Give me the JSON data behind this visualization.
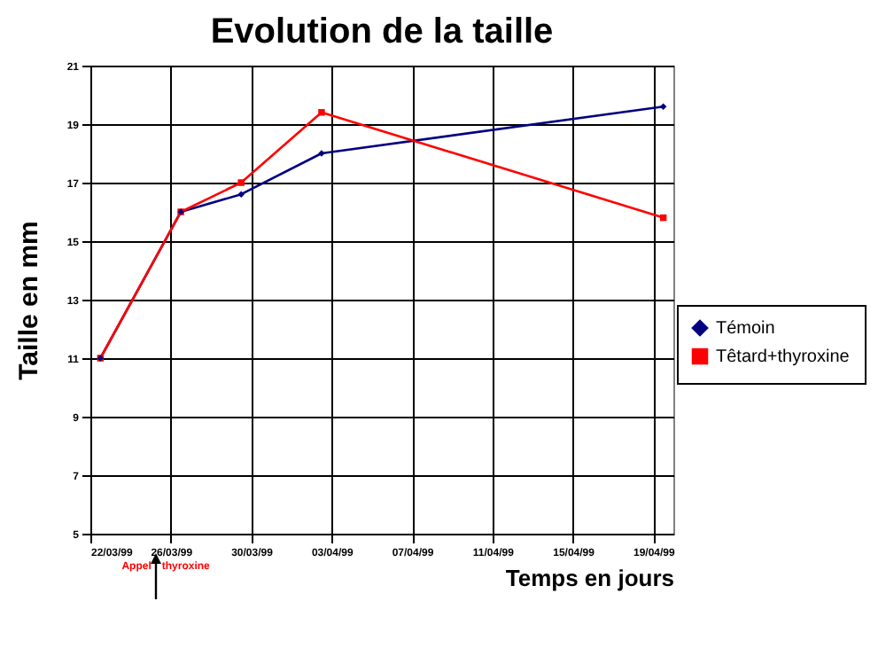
{
  "chart_data": {
    "type": "line",
    "title": "Evolution de la taille",
    "xlabel": "Temps en jours",
    "ylabel": "Taille en mm",
    "x": [
      "1999-03-22T12:00",
      "1999-03-26T12:00",
      "1999-03-29T12:00",
      "1999-04-02T12:00",
      "1999-04-19T12:00"
    ],
    "series": [
      {
        "name": "Témoin",
        "color": "#000080",
        "marker": "diamond",
        "values": [
          11,
          16,
          16.6,
          18,
          19.6
        ]
      },
      {
        "name": "Têtard+thyroxine",
        "color": "#ff0000",
        "marker": "square",
        "values": [
          11,
          16,
          17,
          19.4,
          15.8
        ]
      }
    ],
    "xlim": [
      "1999-03-22",
      "1999-04-20"
    ],
    "xticks": [
      {
        "value": "1999-03-22",
        "label": "22/03/99"
      },
      {
        "value": "1999-03-26",
        "label": "26/03/99"
      },
      {
        "value": "1999-03-30",
        "label": "30/03/99"
      },
      {
        "value": "1999-04-03",
        "label": "03/04/99"
      },
      {
        "value": "1999-04-07",
        "label": "07/04/99"
      },
      {
        "value": "1999-04-11",
        "label": "11/04/99"
      },
      {
        "value": "1999-04-15",
        "label": "15/04/99"
      },
      {
        "value": "1999-04-19",
        "label": "19/04/99"
      }
    ],
    "ylim": [
      5,
      21
    ],
    "yticks": [
      5,
      7,
      9,
      11,
      13,
      15,
      17,
      19,
      21
    ],
    "grid": true,
    "legend": "right",
    "line_style": "solid",
    "annotations": [
      "Appel",
      "thyroxine"
    ]
  }
}
